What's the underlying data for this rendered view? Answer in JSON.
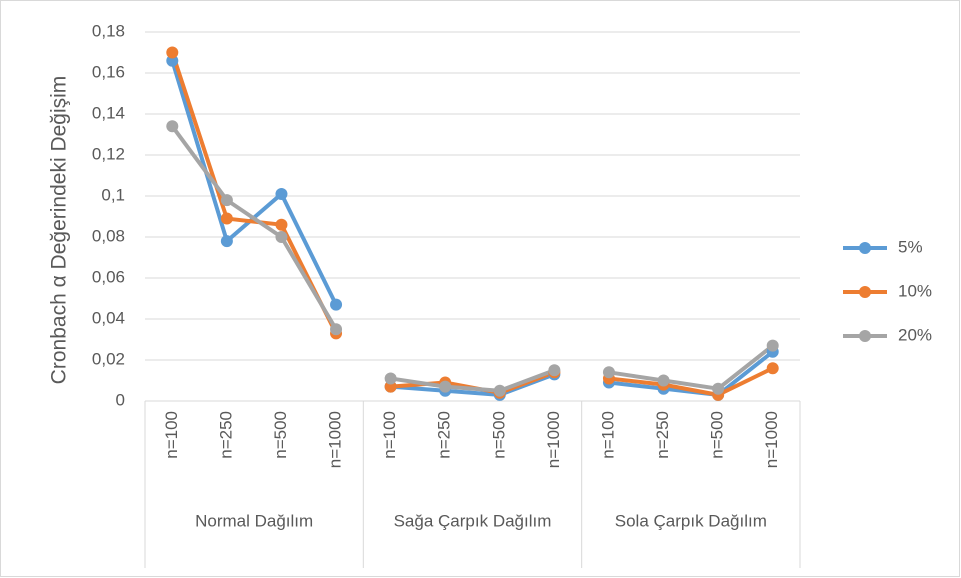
{
  "chart_data": {
    "type": "line",
    "y_label": "Cronbach α Değerindeki Değişim",
    "groups": [
      {
        "name": "Normal Dağılım",
        "categories": [
          "n=100",
          "n=250",
          "n=500",
          "n=1000"
        ]
      },
      {
        "name": "Sağa Çarpık Dağılım",
        "categories": [
          "n=100",
          "n=250",
          "n=500",
          "n=1000"
        ]
      },
      {
        "name": "Sola Çarpık Dağılım",
        "categories": [
          "n=100",
          "n=250",
          "n=500",
          "n=1000"
        ]
      }
    ],
    "series": [
      {
        "name": "5%",
        "color": "#5b9bd5",
        "values": [
          [
            0.166,
            0.078,
            0.101,
            0.047
          ],
          [
            0.007,
            0.005,
            0.003,
            0.013
          ],
          [
            0.009,
            0.006,
            0.003,
            0.024
          ]
        ]
      },
      {
        "name": "10%",
        "color": "#ed7d31",
        "values": [
          [
            0.17,
            0.089,
            0.086,
            0.033
          ],
          [
            0.007,
            0.009,
            0.004,
            0.014
          ],
          [
            0.011,
            0.008,
            0.003,
            0.016
          ]
        ]
      },
      {
        "name": "20%",
        "color": "#a5a5a5",
        "values": [
          [
            0.134,
            0.098,
            0.08,
            0.035
          ],
          [
            0.011,
            0.007,
            0.005,
            0.015
          ],
          [
            0.014,
            0.01,
            0.006,
            0.027
          ]
        ]
      }
    ],
    "ylim": [
      0,
      0.18
    ],
    "yticks": [
      0,
      {
        "value": 0.02,
        "label": "0,02"
      },
      {
        "value": 0.04,
        "label": "0,04"
      },
      {
        "value": 0.06,
        "label": "0,06"
      },
      {
        "value": 0.08,
        "label": "0,08"
      },
      {
        "value": 0.1,
        "label": "0,1"
      },
      {
        "value": 0.12,
        "label": "0,12"
      },
      {
        "value": 0.14,
        "label": "0,14"
      },
      {
        "value": 0.16,
        "label": "0,16"
      },
      {
        "value": 0.18,
        "label": "0,18"
      }
    ],
    "grid": true,
    "legend": "right"
  }
}
